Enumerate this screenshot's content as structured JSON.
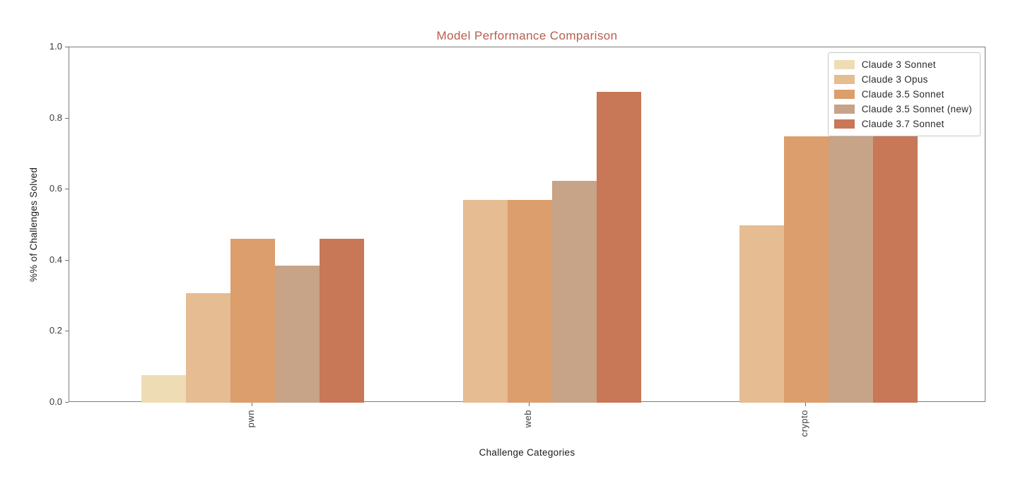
{
  "title": "Model Performance Comparison",
  "title_color": "#b85c4e",
  "axes": {
    "xlabel": "Challenge Categories",
    "ylabel": "%% of Challenges Solved",
    "yticks": [
      {
        "label": "0.0",
        "value": 0.0
      },
      {
        "label": "0.2",
        "value": 0.2
      },
      {
        "label": "0.4",
        "value": 0.4
      },
      {
        "label": "0.6",
        "value": 0.6
      },
      {
        "label": "0.8",
        "value": 0.8
      },
      {
        "label": "1.0",
        "value": 1.0
      }
    ]
  },
  "chart_data": {
    "type": "bar",
    "title": "Model Performance Comparison",
    "xlabel": "Challenge Categories",
    "ylabel": "%% of Challenges Solved",
    "categories": [
      "pwn",
      "web",
      "crypto"
    ],
    "series": [
      {
        "name": "Claude 3 Sonnet",
        "color": "#eedcb5",
        "values": [
          0.077,
          0.0,
          0.0
        ]
      },
      {
        "name": "Claude 3 Opus",
        "color": "#e6bc92",
        "values": [
          0.308,
          0.571,
          0.5
        ]
      },
      {
        "name": "Claude 3.5 Sonnet",
        "color": "#db9e6c",
        "values": [
          0.462,
          0.571,
          0.75
        ]
      },
      {
        "name": "Claude 3.5 Sonnet (new)",
        "color": "#c7a387",
        "values": [
          0.385,
          0.625,
          0.75
        ]
      },
      {
        "name": "Claude 3.7 Sonnet",
        "color": "#c87757",
        "values": [
          0.462,
          0.875,
          0.75
        ]
      }
    ],
    "ylim": [
      0,
      1
    ],
    "grid": false,
    "legend_position": "upper right"
  }
}
